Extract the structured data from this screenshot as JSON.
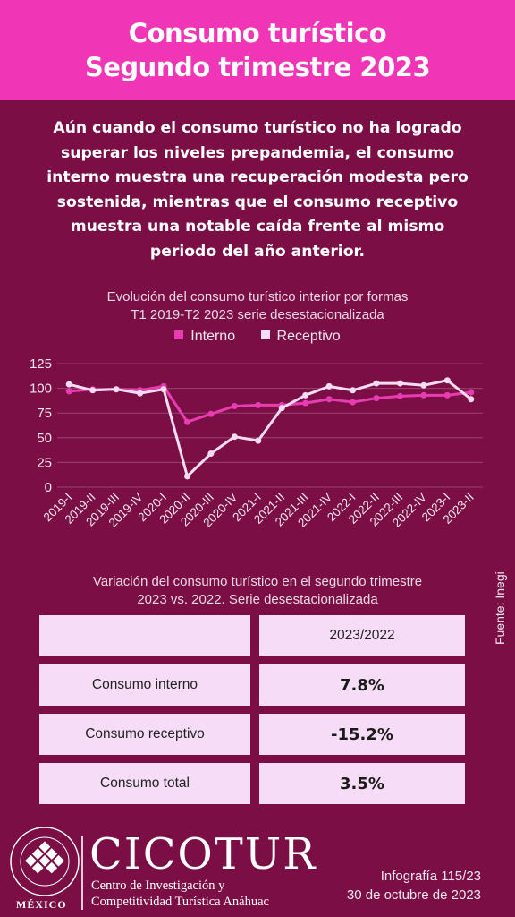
{
  "header": {
    "title_line1": "Consumo turístico",
    "title_line2": "Segundo trimestre 2023"
  },
  "intro": "Aún cuando el consumo turístico no ha logrado superar los niveles prepandemia, el consumo interno muestra una recuperación modesta pero sostenida, mientras que el consumo receptivo muestra una notable caída frente al mismo periodo del año anterior.",
  "chart_title": {
    "line1": "Evolución del consumo turístico interior por formas",
    "line2": "T1 2019-T2 2023 serie desestacionalizada"
  },
  "colors": {
    "background": "#7b0f45",
    "header": "#f035b6",
    "interno": "#e83cb3",
    "receptivo": "#f8dcf3",
    "table_cell": "#f6dcf6"
  },
  "chart_data": {
    "type": "line",
    "categories": [
      "2019-I",
      "2019-II",
      "2019-III",
      "2019-IV",
      "2020-I",
      "2020-II",
      "2020-III",
      "2020-IV",
      "2021-I",
      "2021-II",
      "2021-III",
      "2021-IV",
      "2022-I",
      "2022-II",
      "2022-III",
      "2022-IV",
      "2023-I",
      "2023-II"
    ],
    "series": [
      {
        "name": "Interno",
        "color": "#e83cb3",
        "values": [
          97,
          99,
          99,
          98,
          102,
          66,
          74,
          82,
          83,
          83,
          85,
          89,
          86,
          90,
          92,
          93,
          93,
          96
        ]
      },
      {
        "name": "Receptivo",
        "color": "#f8dcf3",
        "values": [
          104,
          98,
          99,
          95,
          99,
          11,
          34,
          51,
          47,
          80,
          93,
          102,
          98,
          105,
          105,
          103,
          108,
          89
        ]
      }
    ],
    "yticks": [
      0,
      25,
      50,
      75,
      100,
      125
    ],
    "ylim": [
      0,
      125
    ],
    "grid": true,
    "legend": "top"
  },
  "source": "Fuente: Inegi",
  "table": {
    "title_line1": "Variación del consumo turístico en el segundo trimestre",
    "title_line2": "2023 vs. 2022. Serie desestacionalizada",
    "header": [
      "",
      "2023/2022"
    ],
    "rows": [
      {
        "label": "Consumo interno",
        "value": "7.8%"
      },
      {
        "label": "Consumo receptivo",
        "value": "-15.2%"
      },
      {
        "label": "Consumo total",
        "value": "3.5%"
      }
    ]
  },
  "footer": {
    "logo_text": "CICOTUR",
    "org_line1": "Centro de Investigación y",
    "org_line2": "Competitividad Turística Anáhuac",
    "university": "MÉXICO",
    "seal_text": "UNIVERSIDAD ANÁHUAC · VINCE IN BONO MALUM",
    "infografia": "Infografía 115/23",
    "date": "30 de octubre de 2023"
  }
}
